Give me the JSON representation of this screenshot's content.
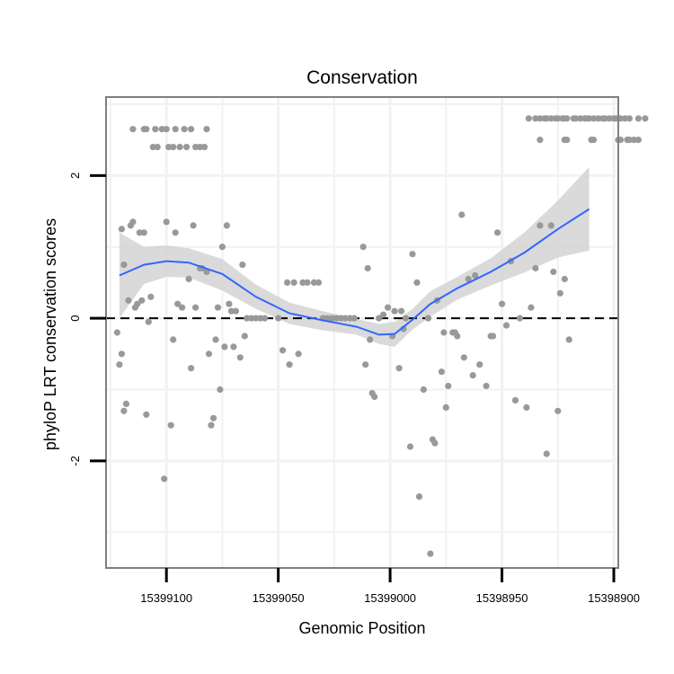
{
  "chart_data": {
    "type": "scatter",
    "title": "Conservation",
    "xlabel": "Genomic Position",
    "ylabel": "phyloP LRT conservation scores",
    "x_reversed": true,
    "xlim": [
      15399127,
      15398898
    ],
    "ylim": [
      -3.5,
      3.1
    ],
    "x_ticks": [
      15399100,
      15399050,
      15399000,
      15398950,
      15398900
    ],
    "x_tick_labels": [
      "15399100",
      "15399050",
      "15399000",
      "15398950",
      "15398900"
    ],
    "y_ticks": [
      -2,
      0,
      2
    ],
    "y_tick_labels": [
      "-2",
      "0",
      "2"
    ],
    "reference_line": {
      "y": 0,
      "style": "dashed"
    },
    "grid": true,
    "colors": {
      "points": "#999999",
      "smooth": "#3366FF",
      "band": "#d3d3d3",
      "panel_border": "#7f7f7f",
      "grid": "#f2f2f2"
    },
    "points": [
      [
        15399115,
        2.65
      ],
      [
        15399110,
        2.65
      ],
      [
        15399109,
        2.65
      ],
      [
        15399106,
        2.4
      ],
      [
        15399105,
        2.65
      ],
      [
        15399104,
        2.4
      ],
      [
        15399102,
        2.65
      ],
      [
        15399100,
        2.65
      ],
      [
        15399099,
        2.4
      ],
      [
        15399097,
        2.4
      ],
      [
        15399096,
        2.65
      ],
      [
        15399094,
        2.4
      ],
      [
        15399092,
        2.65
      ],
      [
        15399091,
        2.4
      ],
      [
        15399089,
        2.65
      ],
      [
        15399087,
        2.4
      ],
      [
        15399085,
        2.4
      ],
      [
        15399083,
        2.4
      ],
      [
        15399082,
        2.65
      ],
      [
        15398938,
        2.8
      ],
      [
        15398935,
        2.8
      ],
      [
        15398933,
        2.8
      ],
      [
        15398931,
        2.8
      ],
      [
        15398930,
        2.8
      ],
      [
        15398928,
        2.8
      ],
      [
        15398926,
        2.8
      ],
      [
        15398925,
        2.8
      ],
      [
        15398923,
        2.8
      ],
      [
        15398922,
        2.8
      ],
      [
        15398921,
        2.8
      ],
      [
        15398918,
        2.8
      ],
      [
        15398917,
        2.8
      ],
      [
        15398915,
        2.8
      ],
      [
        15398913,
        2.8
      ],
      [
        15398912,
        2.8
      ],
      [
        15398911,
        2.8
      ],
      [
        15398909,
        2.8
      ],
      [
        15398907,
        2.8
      ],
      [
        15398905,
        2.8
      ],
      [
        15398904,
        2.8
      ],
      [
        15398902,
        2.8
      ],
      [
        15398900,
        2.8
      ],
      [
        15398899,
        2.8
      ],
      [
        15398897,
        2.8
      ],
      [
        15398895,
        2.8
      ],
      [
        15398893,
        2.8
      ],
      [
        15398889,
        2.8
      ],
      [
        15398886,
        2.8
      ],
      [
        15398933,
        2.5
      ],
      [
        15398922,
        2.5
      ],
      [
        15398921,
        2.5
      ],
      [
        15398910,
        2.5
      ],
      [
        15398909,
        2.5
      ],
      [
        15398898,
        2.5
      ],
      [
        15398897,
        2.5
      ],
      [
        15398894,
        2.5
      ],
      [
        15398893,
        2.5
      ],
      [
        15398891,
        2.5
      ],
      [
        15398889,
        2.5
      ],
      [
        15399122,
        -0.2
      ],
      [
        15399121,
        -0.65
      ],
      [
        15399120,
        -0.5
      ],
      [
        15399119,
        -1.3
      ],
      [
        15399118,
        -1.2
      ],
      [
        15399120,
        1.25
      ],
      [
        15399119,
        0.75
      ],
      [
        15399117,
        0.25
      ],
      [
        15399116,
        1.3
      ],
      [
        15399115,
        1.35
      ],
      [
        15399114,
        0.15
      ],
      [
        15399113,
        0.2
      ],
      [
        15399112,
        1.2
      ],
      [
        15399111,
        0.25
      ],
      [
        15399110,
        1.2
      ],
      [
        15399109,
        -1.35
      ],
      [
        15399108,
        -0.05
      ],
      [
        15399107,
        0.3
      ],
      [
        15399101,
        -2.25
      ],
      [
        15399100,
        1.35
      ],
      [
        15399098,
        -1.5
      ],
      [
        15399097,
        -0.3
      ],
      [
        15399096,
        1.2
      ],
      [
        15399095,
        0.2
      ],
      [
        15399093,
        0.15
      ],
      [
        15399090,
        0.55
      ],
      [
        15399089,
        -0.7
      ],
      [
        15399088,
        1.3
      ],
      [
        15399087,
        0.15
      ],
      [
        15399085,
        0.7
      ],
      [
        15399084,
        0.7
      ],
      [
        15399082,
        0.65
      ],
      [
        15399081,
        -0.5
      ],
      [
        15399080,
        -1.5
      ],
      [
        15399079,
        -1.4
      ],
      [
        15399078,
        -0.3
      ],
      [
        15399077,
        0.15
      ],
      [
        15399076,
        -1.0
      ],
      [
        15399075,
        1.0
      ],
      [
        15399074,
        -0.4
      ],
      [
        15399073,
        1.3
      ],
      [
        15399072,
        0.2
      ],
      [
        15399071,
        0.1
      ],
      [
        15399070,
        -0.4
      ],
      [
        15399069,
        0.1
      ],
      [
        15399067,
        -0.55
      ],
      [
        15399066,
        0.75
      ],
      [
        15399065,
        -0.25
      ],
      [
        15399064,
        0.0
      ],
      [
        15399062,
        0.0
      ],
      [
        15399060,
        0.0
      ],
      [
        15399058,
        0.0
      ],
      [
        15399056,
        0.0
      ],
      [
        15399050,
        0.0
      ],
      [
        15399048,
        -0.45
      ],
      [
        15399046,
        0.5
      ],
      [
        15399045,
        -0.65
      ],
      [
        15399043,
        0.5
      ],
      [
        15399041,
        -0.5
      ],
      [
        15399039,
        0.5
      ],
      [
        15399037,
        0.5
      ],
      [
        15399034,
        0.5
      ],
      [
        15399032,
        0.5
      ],
      [
        15399030,
        0.0
      ],
      [
        15399028,
        0.0
      ],
      [
        15399026,
        0.0
      ],
      [
        15399024,
        0.0
      ],
      [
        15399022,
        0.0
      ],
      [
        15399020,
        0.0
      ],
      [
        15399018,
        0.0
      ],
      [
        15399016,
        0.0
      ],
      [
        15399012,
        1.0
      ],
      [
        15399011,
        -0.65
      ],
      [
        15399010,
        0.7
      ],
      [
        15399009,
        -0.3
      ],
      [
        15399008,
        -1.05
      ],
      [
        15399007,
        -1.1
      ],
      [
        15399005,
        0.0
      ],
      [
        15399003,
        0.05
      ],
      [
        15399001,
        0.15
      ],
      [
        15398999,
        -0.25
      ],
      [
        15398998,
        0.1
      ],
      [
        15398996,
        -0.7
      ],
      [
        15398995,
        0.1
      ],
      [
        15398994,
        -0.15
      ],
      [
        15398993,
        0.0
      ],
      [
        15398991,
        -1.8
      ],
      [
        15398990,
        0.9
      ],
      [
        15398988,
        0.5
      ],
      [
        15398987,
        -2.5
      ],
      [
        15398985,
        -1.0
      ],
      [
        15398983,
        0.0
      ],
      [
        15398982,
        -3.3
      ],
      [
        15398981,
        -1.7
      ],
      [
        15398980,
        -1.75
      ],
      [
        15398979,
        0.25
      ],
      [
        15398977,
        -0.75
      ],
      [
        15398976,
        -0.2
      ],
      [
        15398975,
        -1.25
      ],
      [
        15398974,
        -0.95
      ],
      [
        15398972,
        -0.2
      ],
      [
        15398971,
        -0.2
      ],
      [
        15398970,
        -0.25
      ],
      [
        15398968,
        1.45
      ],
      [
        15398967,
        -0.55
      ],
      [
        15398965,
        0.55
      ],
      [
        15398963,
        -0.8
      ],
      [
        15398962,
        0.6
      ],
      [
        15398960,
        -0.65
      ],
      [
        15398957,
        -0.95
      ],
      [
        15398955,
        -0.25
      ],
      [
        15398954,
        -0.25
      ],
      [
        15398952,
        1.2
      ],
      [
        15398950,
        0.2
      ],
      [
        15398948,
        -0.1
      ],
      [
        15398946,
        0.8
      ],
      [
        15398944,
        -1.15
      ],
      [
        15398942,
        0.0
      ],
      [
        15398939,
        -1.25
      ],
      [
        15398937,
        0.15
      ],
      [
        15398935,
        0.7
      ],
      [
        15398933,
        1.3
      ],
      [
        15398930,
        -1.9
      ],
      [
        15398928,
        1.3
      ],
      [
        15398927,
        0.65
      ],
      [
        15398925,
        -1.3
      ],
      [
        15398924,
        0.35
      ],
      [
        15398922,
        0.55
      ],
      [
        15398920,
        -0.3
      ]
    ],
    "smooth_line": [
      [
        15399121,
        0.6
      ],
      [
        15399110,
        0.75
      ],
      [
        15399100,
        0.8
      ],
      [
        15399090,
        0.78
      ],
      [
        15399075,
        0.62
      ],
      [
        15399060,
        0.3
      ],
      [
        15399045,
        0.07
      ],
      [
        15399030,
        -0.03
      ],
      [
        15399015,
        -0.12
      ],
      [
        15399005,
        -0.23
      ],
      [
        15398998,
        -0.22
      ],
      [
        15398990,
        -0.02
      ],
      [
        15398982,
        0.2
      ],
      [
        15398970,
        0.42
      ],
      [
        15398955,
        0.65
      ],
      [
        15398940,
        0.92
      ],
      [
        15398925,
        1.25
      ],
      [
        15398911,
        1.53
      ]
    ],
    "confidence_band": {
      "upper": [
        [
          15399121,
          1.2
        ],
        [
          15399110,
          1.0
        ],
        [
          15399100,
          1.02
        ],
        [
          15399090,
          0.98
        ],
        [
          15399075,
          0.83
        ],
        [
          15399060,
          0.47
        ],
        [
          15399045,
          0.22
        ],
        [
          15399030,
          0.1
        ],
        [
          15399015,
          -0.01
        ],
        [
          15399005,
          -0.08
        ],
        [
          15398998,
          -0.05
        ],
        [
          15398990,
          0.13
        ],
        [
          15398982,
          0.38
        ],
        [
          15398970,
          0.58
        ],
        [
          15398955,
          0.84
        ],
        [
          15398940,
          1.2
        ],
        [
          15398925,
          1.65
        ],
        [
          15398911,
          2.12
        ]
      ],
      "lower": [
        [
          15399121,
          0.0
        ],
        [
          15399110,
          0.48
        ],
        [
          15399100,
          0.58
        ],
        [
          15399090,
          0.57
        ],
        [
          15399075,
          0.39
        ],
        [
          15399060,
          0.13
        ],
        [
          15399045,
          -0.08
        ],
        [
          15399030,
          -0.17
        ],
        [
          15399015,
          -0.23
        ],
        [
          15399005,
          -0.36
        ],
        [
          15398998,
          -0.4
        ],
        [
          15398990,
          -0.16
        ],
        [
          15398982,
          0.02
        ],
        [
          15398970,
          0.26
        ],
        [
          15398955,
          0.46
        ],
        [
          15398940,
          0.64
        ],
        [
          15398925,
          0.85
        ],
        [
          15398911,
          0.95
        ]
      ]
    }
  }
}
